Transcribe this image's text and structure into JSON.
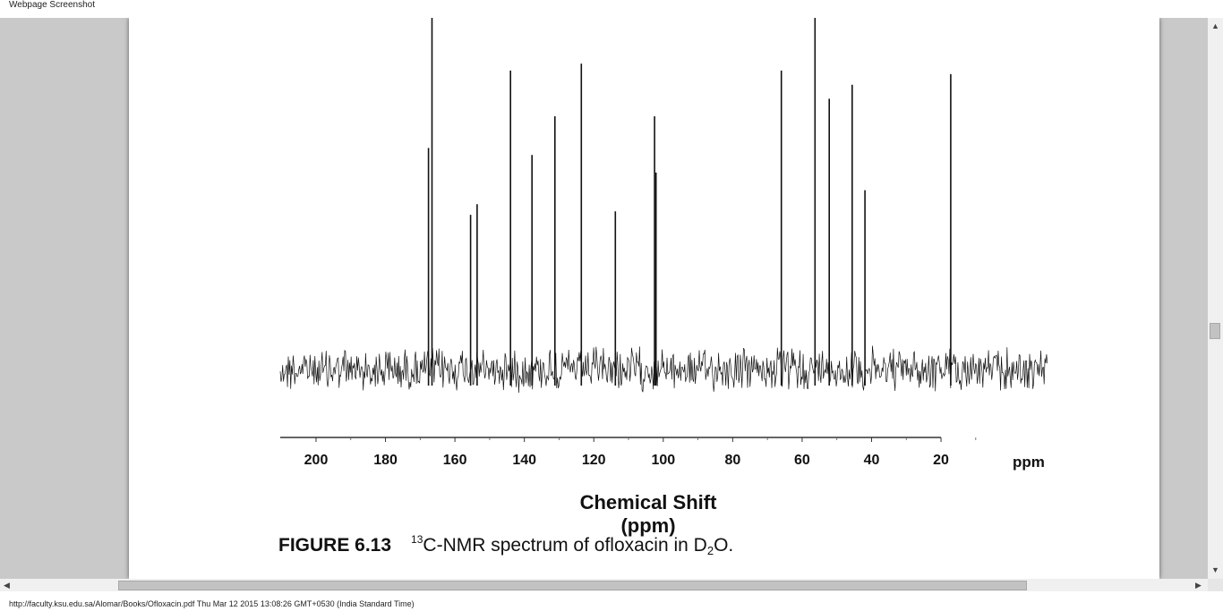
{
  "window": {
    "title": "Webpage Screenshot"
  },
  "status_bar": {
    "text": "http://faculty.ksu.edu.sa/Alomar/Books/Ofloxacin.pdf Thu Mar 12 2015 13:08:26 GMT+0530 (India Standard Time)"
  },
  "scrollbars": {
    "up_icon": "▲",
    "down_icon": "▼",
    "left_icon": "◀",
    "right_icon": "▶"
  },
  "caption": {
    "figure_label": "FIGURE 6.13",
    "isotope_mass": "13",
    "text_main": "C-NMR spectrum of ofloxacin in D",
    "subscript": "2",
    "text_end": "O."
  },
  "chart_data": {
    "type": "line",
    "xlabel": "Chemical Shift (ppm)",
    "x_unit_label": "ppm",
    "x_ticks": [
      "200",
      "180",
      "160",
      "140",
      "120",
      "100",
      "80",
      "60",
      "40",
      "20"
    ],
    "xlim": [
      210,
      20
    ],
    "x_reversed": true,
    "grid": false,
    "peaks": [
      {
        "ppm": 167.6,
        "relative_height": 0.63
      },
      {
        "ppm": 166.6,
        "relative_height": 1.0
      },
      {
        "ppm": 155.5,
        "relative_height": 0.44
      },
      {
        "ppm": 153.6,
        "relative_height": 0.47
      },
      {
        "ppm": 144.0,
        "relative_height": 0.85
      },
      {
        "ppm": 137.8,
        "relative_height": 0.61
      },
      {
        "ppm": 131.2,
        "relative_height": 0.72
      },
      {
        "ppm": 123.6,
        "relative_height": 0.87
      },
      {
        "ppm": 113.8,
        "relative_height": 0.45
      },
      {
        "ppm": 102.5,
        "relative_height": 0.72
      },
      {
        "ppm": 102.1,
        "relative_height": 0.56
      },
      {
        "ppm": 66.0,
        "relative_height": 0.85
      },
      {
        "ppm": 56.3,
        "relative_height": 1.0
      },
      {
        "ppm": 52.2,
        "relative_height": 0.77
      },
      {
        "ppm": 45.6,
        "relative_height": 0.81
      },
      {
        "ppm": 41.9,
        "relative_height": 0.51
      },
      {
        "ppm": 17.2,
        "relative_height": 0.84
      }
    ]
  }
}
